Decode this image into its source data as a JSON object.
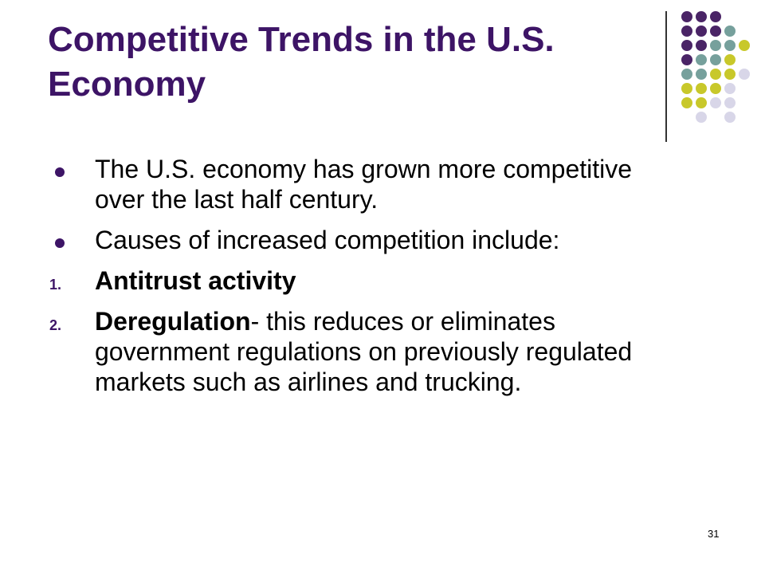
{
  "slide": {
    "title": "Competitive Trends in the U.S. Economy",
    "page_number": "31",
    "items": [
      {
        "marker": "",
        "bold": "",
        "text": "The U.S. economy has grown more competitive over the last half century."
      },
      {
        "marker": "",
        "bold": "",
        "text": "Causes of increased competition include:"
      },
      {
        "marker": "1.",
        "bold": "Antitrust activity",
        "text": ""
      },
      {
        "marker": "2.",
        "bold": "Deregulation",
        "text": "- this reduces or eliminates government regulations on previously regulated markets such as airlines and trucking."
      }
    ]
  },
  "colors": {
    "title": "#3d1466",
    "bullet": "#3d1466",
    "dot_purple": "#4a2466",
    "dot_teal": "#76a09c",
    "dot_yellow": "#c8c82a",
    "dot_lavender": "#d8d6e8"
  }
}
